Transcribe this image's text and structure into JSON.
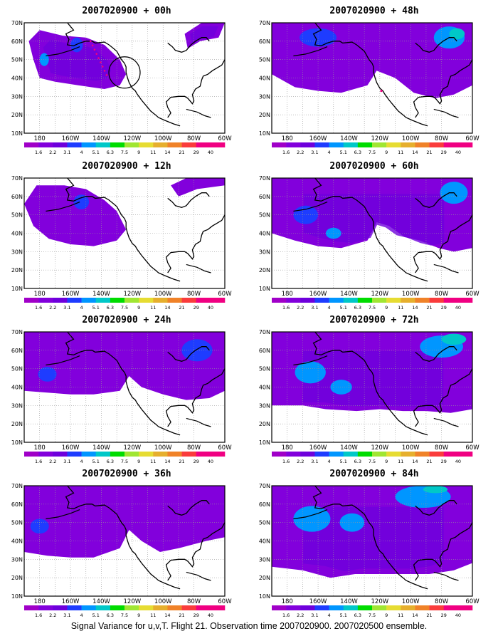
{
  "panels": [
    {
      "title": "2007020900 + 00h",
      "lead": "00h"
    },
    {
      "title": "2007020900 + 48h",
      "lead": "48h"
    },
    {
      "title": "2007020900 + 12h",
      "lead": "12h"
    },
    {
      "title": "2007020900 + 60h",
      "lead": "60h"
    },
    {
      "title": "2007020900 + 24h",
      "lead": "24h"
    },
    {
      "title": "2007020900 + 72h",
      "lead": "72h"
    },
    {
      "title": "2007020900 + 36h",
      "lead": "36h"
    },
    {
      "title": "2007020900 + 84h",
      "lead": "84h"
    }
  ],
  "map": {
    "lat_labels": [
      "10N",
      "20N",
      "30N",
      "40N",
      "50N",
      "60N",
      "70N"
    ],
    "lon_labels": [
      "180",
      "160W",
      "140W",
      "120W",
      "100W",
      "80W",
      "60W"
    ]
  },
  "colorbar": {
    "labels": [
      "1.6",
      "2.2",
      "3.1",
      "4",
      "5.1",
      "6.3",
      "7.5",
      "9",
      "11",
      "14",
      "21",
      "29",
      "40"
    ],
    "colors": [
      "#a000c8",
      "#8200dc",
      "#6e00dc",
      "#1e3cff",
      "#0096ff",
      "#00c8c8",
      "#00dc00",
      "#a0e632",
      "#e6dc32",
      "#e6af2d",
      "#f08228",
      "#fa3c3c",
      "#f00082",
      "#f00082"
    ]
  },
  "footer": {
    "caption": "Signal Variance for u,v,T. Flight 21. Observation time 2007020900. 2007020500 ensemble."
  }
}
